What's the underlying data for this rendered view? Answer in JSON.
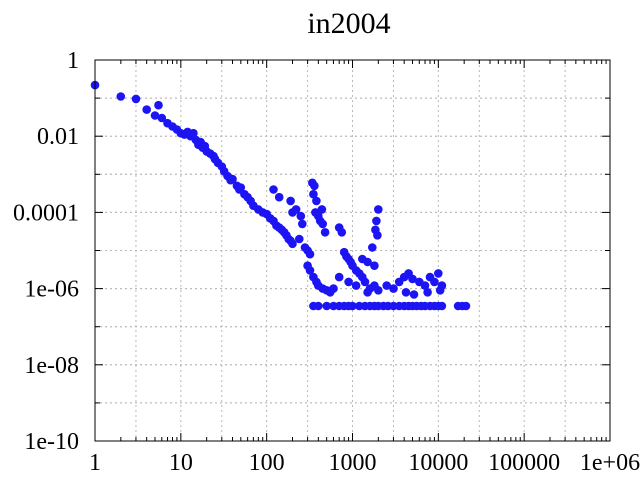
{
  "chart_data": {
    "type": "scatter",
    "title": "in2004",
    "xlabel": "",
    "ylabel": "",
    "xscale": "log",
    "yscale": "log",
    "xlim": [
      1,
      1000000
    ],
    "ylim": [
      1e-10,
      1
    ],
    "grid": true,
    "x_ticks": [
      1,
      10,
      100,
      1000,
      10000,
      100000,
      1000000
    ],
    "x_tick_labels": [
      "1",
      "10",
      "100",
      "1000",
      "10000",
      "100000",
      "1e+06"
    ],
    "y_ticks": [
      1,
      0.01,
      0.0001,
      1e-06,
      1e-08,
      1e-10
    ],
    "y_tick_labels": [
      "1",
      "0.01",
      "0.0001",
      "1e-06",
      "1e-08",
      "1e-10"
    ],
    "marker_color": "#1c14f2",
    "series": [
      {
        "points": [
          [
            1,
            0.22
          ],
          [
            2,
            0.11
          ],
          [
            3,
            0.095
          ],
          [
            4,
            0.05
          ],
          [
            5,
            0.035
          ],
          [
            5.5,
            0.065
          ],
          [
            6,
            0.03
          ],
          [
            7,
            0.022
          ],
          [
            8,
            0.018
          ],
          [
            9,
            0.015
          ],
          [
            10,
            0.012
          ],
          [
            11,
            0.011
          ],
          [
            12,
            0.013
          ],
          [
            13,
            0.01
          ],
          [
            14,
            0.012
          ],
          [
            15,
            0.008
          ],
          [
            16,
            0.006
          ],
          [
            17,
            0.007
          ],
          [
            18,
            0.005
          ],
          [
            19,
            0.0055
          ],
          [
            20,
            0.004
          ],
          [
            22,
            0.0035
          ],
          [
            24,
            0.003
          ],
          [
            25,
            0.0025
          ],
          [
            27,
            0.002
          ],
          [
            30,
            0.0016
          ],
          [
            32,
            0.0012
          ],
          [
            35,
            0.0009
          ],
          [
            38,
            0.0007
          ],
          [
            40,
            0.00075
          ],
          [
            45,
            0.0005
          ],
          [
            48,
            0.0004
          ],
          [
            50,
            0.00045
          ],
          [
            55,
            0.0003
          ],
          [
            60,
            0.00025
          ],
          [
            65,
            0.0002
          ],
          [
            70,
            0.00015
          ],
          [
            80,
            0.00012
          ],
          [
            90,
            0.0001
          ],
          [
            100,
            9e-05
          ],
          [
            110,
            7e-05
          ],
          [
            120,
            6e-05
          ],
          [
            130,
            4.5e-05
          ],
          [
            140,
            4e-05
          ],
          [
            150,
            3.5e-05
          ],
          [
            160,
            3e-05
          ],
          [
            170,
            2.5e-05
          ],
          [
            180,
            2e-05
          ],
          [
            190,
            1.8e-05
          ],
          [
            200,
            1.5e-05
          ],
          [
            120,
            0.0004
          ],
          [
            140,
            0.00025
          ],
          [
            190,
            0.0002
          ],
          [
            200,
            0.0001
          ],
          [
            220,
            0.00012
          ],
          [
            250,
            8e-05
          ],
          [
            260,
            5e-05
          ],
          [
            240,
            2e-05
          ],
          [
            280,
            1.2e-05
          ],
          [
            300,
            1e-05
          ],
          [
            320,
            8e-06
          ],
          [
            340,
            0.0006
          ],
          [
            360,
            0.0005
          ],
          [
            350,
            0.0003
          ],
          [
            380,
            0.0002
          ],
          [
            370,
            0.0001
          ],
          [
            400,
            8e-05
          ],
          [
            420,
            6e-05
          ],
          [
            440,
            0.00012
          ],
          [
            450,
            5e-05
          ],
          [
            480,
            3e-05
          ],
          [
            300,
            4e-06
          ],
          [
            320,
            3e-06
          ],
          [
            350,
            2e-06
          ],
          [
            380,
            1.5e-06
          ],
          [
            400,
            1.2e-06
          ],
          [
            450,
            1e-06
          ],
          [
            500,
            9e-07
          ],
          [
            550,
            8e-07
          ],
          [
            600,
            1e-06
          ],
          [
            700,
            4e-05
          ],
          [
            750,
            3e-05
          ],
          [
            800,
            9e-06
          ],
          [
            850,
            7e-06
          ],
          [
            900,
            6e-06
          ],
          [
            950,
            5e-06
          ],
          [
            1000,
            4e-06
          ],
          [
            1100,
            3e-06
          ],
          [
            1200,
            2.5e-06
          ],
          [
            1300,
            2e-06
          ],
          [
            1400,
            1.5e-06
          ],
          [
            1600,
            1e-06
          ],
          [
            1800,
            1.2e-06
          ],
          [
            2000,
            9e-07
          ],
          [
            1300,
            6e-06
          ],
          [
            1500,
            5e-06
          ],
          [
            1800,
            4e-06
          ],
          [
            2000,
            0.00012
          ],
          [
            1900,
            6e-05
          ],
          [
            1850,
            3.5e-05
          ],
          [
            1950,
            2.5e-05
          ],
          [
            1700,
            1.2e-05
          ],
          [
            700,
            2e-06
          ],
          [
            900,
            1.5e-06
          ],
          [
            1100,
            1.2e-06
          ],
          [
            1500,
            8e-07
          ],
          [
            2500,
            1.2e-06
          ],
          [
            3000,
            1e-06
          ],
          [
            3500,
            1.5e-06
          ],
          [
            4000,
            2e-06
          ],
          [
            4500,
            2.5e-06
          ],
          [
            5000,
            1.8e-06
          ],
          [
            6000,
            1.5e-06
          ],
          [
            7000,
            1.2e-06
          ],
          [
            8000,
            2e-06
          ],
          [
            9000,
            1.5e-06
          ],
          [
            10000,
            2.5e-06
          ],
          [
            4200,
            8e-07
          ],
          [
            5200,
            7e-07
          ],
          [
            7500,
            8e-07
          ],
          [
            10500,
            9e-07
          ],
          [
            11000,
            1.2e-06
          ],
          [
            350,
            3.5e-07
          ],
          [
            400,
            3.5e-07
          ],
          [
            500,
            3.5e-07
          ],
          [
            600,
            3.5e-07
          ],
          [
            700,
            3.5e-07
          ],
          [
            800,
            3.5e-07
          ],
          [
            900,
            3.5e-07
          ],
          [
            1000,
            3.5e-07
          ],
          [
            1200,
            3.5e-07
          ],
          [
            1400,
            3.5e-07
          ],
          [
            1600,
            3.5e-07
          ],
          [
            1800,
            3.5e-07
          ],
          [
            2000,
            3.5e-07
          ],
          [
            2300,
            3.5e-07
          ],
          [
            2600,
            3.5e-07
          ],
          [
            3000,
            3.5e-07
          ],
          [
            3500,
            3.5e-07
          ],
          [
            4000,
            3.5e-07
          ],
          [
            4500,
            3.5e-07
          ],
          [
            5000,
            3.5e-07
          ],
          [
            5600,
            3.5e-07
          ],
          [
            6300,
            3.5e-07
          ],
          [
            7000,
            3.5e-07
          ],
          [
            8000,
            3.5e-07
          ],
          [
            9000,
            3.5e-07
          ],
          [
            10000,
            3.5e-07
          ],
          [
            11000,
            3.5e-07
          ],
          [
            17000,
            3.5e-07
          ],
          [
            19000,
            3.5e-07
          ],
          [
            21000,
            3.5e-07
          ]
        ]
      }
    ]
  }
}
